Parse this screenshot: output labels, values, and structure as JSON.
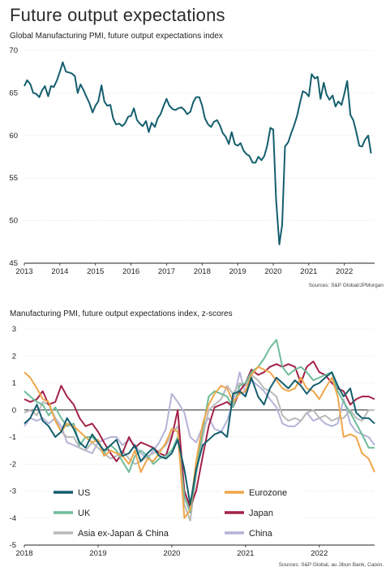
{
  "page_title": "Future output expectations",
  "colors": {
    "teal": "#145e6e",
    "orange": "#f0a64a",
    "green": "#6fbc9a",
    "maroon": "#a32247",
    "grey": "#b9b9b9",
    "lavender": "#b3b4d8",
    "axis": "#222222",
    "grid": "#bbbbbb"
  },
  "chart_data": [
    {
      "type": "line",
      "title": "Global Manufacturing PMI, future output expectations index",
      "source": "Sources: S&P Global/JPMorgan",
      "xlim": [
        2013.0,
        2022.85
      ],
      "ylim": [
        45,
        70
      ],
      "yticks": [
        45,
        50,
        55,
        60,
        65,
        70
      ],
      "xticks": [
        "2013",
        "2014",
        "2015",
        "2016",
        "2017",
        "2018",
        "2019",
        "2020",
        "2021",
        "2022"
      ],
      "series": [
        {
          "color_key": "teal",
          "x": [
            2013.0,
            2013.08,
            2013.17,
            2013.25,
            2013.33,
            2013.42,
            2013.5,
            2013.58,
            2013.67,
            2013.75,
            2013.83,
            2013.92,
            2014.0,
            2014.08,
            2014.17,
            2014.25,
            2014.33,
            2014.42,
            2014.5,
            2014.58,
            2014.67,
            2014.75,
            2014.83,
            2014.92,
            2015.0,
            2015.08,
            2015.17,
            2015.25,
            2015.33,
            2015.42,
            2015.5,
            2015.58,
            2015.67,
            2015.75,
            2015.83,
            2015.92,
            2016.0,
            2016.08,
            2016.17,
            2016.25,
            2016.33,
            2016.42,
            2016.5,
            2016.58,
            2016.67,
            2016.75,
            2016.83,
            2016.92,
            2017.0,
            2017.08,
            2017.17,
            2017.25,
            2017.33,
            2017.42,
            2017.5,
            2017.58,
            2017.67,
            2017.75,
            2017.83,
            2017.92,
            2018.0,
            2018.08,
            2018.17,
            2018.25,
            2018.33,
            2018.42,
            2018.5,
            2018.58,
            2018.67,
            2018.75,
            2018.83,
            2018.92,
            2019.0,
            2019.08,
            2019.17,
            2019.25,
            2019.33,
            2019.42,
            2019.5,
            2019.58,
            2019.67,
            2019.75,
            2019.83,
            2019.92,
            2020.0,
            2020.08,
            2020.17,
            2020.25,
            2020.33,
            2020.42,
            2020.5,
            2020.58,
            2020.67,
            2020.75,
            2020.83,
            2020.92,
            2021.0,
            2021.08,
            2021.17,
            2021.25,
            2021.33,
            2021.42,
            2021.5,
            2021.58,
            2021.67,
            2021.75,
            2021.83,
            2021.92,
            2022.0,
            2022.08,
            2022.17,
            2022.25,
            2022.33,
            2022.42,
            2022.5,
            2022.58,
            2022.67,
            2022.75
          ],
          "y": [
            65.8,
            66.5,
            66.0,
            65.0,
            64.9,
            64.5,
            65.3,
            65.8,
            64.6,
            65.8,
            65.7,
            66.5,
            67.5,
            68.6,
            67.5,
            67.4,
            67.3,
            67.0,
            65.0,
            66.0,
            65.3,
            64.5,
            63.8,
            62.7,
            63.5,
            64.0,
            65.9,
            64.0,
            63.5,
            63.6,
            62.0,
            61.3,
            61.4,
            61.1,
            61.4,
            62.2,
            62.3,
            63.2,
            61.8,
            61.4,
            61.1,
            61.7,
            60.4,
            61.5,
            61.0,
            62.0,
            62.5,
            63.5,
            64.3,
            63.5,
            63.1,
            63.0,
            63.2,
            63.3,
            63.0,
            62.5,
            62.8,
            63.9,
            64.5,
            64.5,
            63.5,
            62.0,
            61.3,
            61.0,
            61.6,
            61.8,
            61.2,
            60.3,
            59.8,
            59.0,
            60.4,
            59.0,
            58.8,
            59.1,
            58.2,
            57.8,
            57.6,
            56.8,
            56.8,
            57.5,
            57.1,
            57.6,
            58.8,
            60.9,
            60.7,
            52.5,
            47.2,
            49.5,
            58.7,
            59.2,
            60.2,
            61.1,
            62.3,
            63.8,
            65.2,
            65.0,
            64.6,
            67.2,
            66.7,
            66.9,
            64.3,
            66.2,
            64.8,
            64.2,
            64.7,
            63.4,
            64.0,
            63.6,
            64.9,
            66.4,
            62.4,
            61.8,
            60.5,
            58.8,
            58.7,
            59.5,
            60.0,
            57.9
          ]
        }
      ]
    },
    {
      "type": "line",
      "title": "Manufacturing PMI, future output expectations index, z-scores",
      "source": "Sources: S&P Global, au Jibun Bank, Caixin.",
      "xlim": [
        2018.0,
        2022.75
      ],
      "ylim": [
        -5,
        3
      ],
      "yticks": [
        3,
        2,
        1,
        0,
        -1,
        -2,
        -3,
        -4,
        -5
      ],
      "xticks": [
        "2018",
        "2019",
        "2020",
        "2021",
        "2022"
      ],
      "legend": [
        {
          "label": "US",
          "color_key": "teal"
        },
        {
          "label": "Eurozone",
          "color_key": "orange"
        },
        {
          "label": "UK",
          "color_key": "green"
        },
        {
          "label": "Japan",
          "color_key": "maroon"
        },
        {
          "label": "Asia ex-Japan & China",
          "color_key": "grey"
        },
        {
          "label": "China",
          "color_key": "lavender"
        }
      ],
      "x": [
        2018.0,
        2018.08,
        2018.17,
        2018.25,
        2018.33,
        2018.42,
        2018.5,
        2018.58,
        2018.67,
        2018.75,
        2018.83,
        2018.92,
        2019.0,
        2019.08,
        2019.17,
        2019.25,
        2019.33,
        2019.42,
        2019.5,
        2019.58,
        2019.67,
        2019.75,
        2019.83,
        2019.92,
        2020.0,
        2020.08,
        2020.17,
        2020.25,
        2020.33,
        2020.42,
        2020.5,
        2020.58,
        2020.67,
        2020.75,
        2020.83,
        2020.92,
        2021.0,
        2021.08,
        2021.17,
        2021.25,
        2021.33,
        2021.42,
        2021.5,
        2021.58,
        2021.67,
        2021.75,
        2021.83,
        2021.92,
        2022.0,
        2022.08,
        2022.17,
        2022.25,
        2022.33,
        2022.42,
        2022.5,
        2022.58,
        2022.67,
        2022.75
      ],
      "series": [
        {
          "name": "US",
          "color_key": "teal",
          "y": [
            -0.5,
            -0.3,
            0.2,
            -0.4,
            -0.6,
            -1.0,
            -0.8,
            -0.3,
            -0.7,
            -1.2,
            -1.4,
            -0.9,
            -1.2,
            -1.5,
            -1.3,
            -1.1,
            -1.7,
            -1.6,
            -1.3,
            -1.9,
            -1.6,
            -1.4,
            -1.7,
            -1.8,
            -1.6,
            -1.1,
            -2.2,
            -3.5,
            -2.2,
            -1.3,
            -1.1,
            -0.9,
            -0.8,
            -1.0,
            0.6,
            0.7,
            0.5,
            1.2,
            0.5,
            0.2,
            0.8,
            1.2,
            1.0,
            0.8,
            1.1,
            0.9,
            0.6,
            0.9,
            1.0,
            1.2,
            1.4,
            0.9,
            0.5,
            0.8,
            -0.1,
            -0.3,
            -0.3,
            -0.5
          ]
        },
        {
          "name": "Eurozone",
          "color_key": "orange",
          "y": [
            1.4,
            1.2,
            0.8,
            0.4,
            0.3,
            -0.4,
            -0.8,
            -0.5,
            -0.6,
            -0.8,
            -1.0,
            -1.2,
            -1.1,
            -1.7,
            -1.5,
            -1.6,
            -1.7,
            -2.0,
            -1.5,
            -2.3,
            -1.8,
            -1.9,
            -1.6,
            -1.2,
            -0.7,
            -0.8,
            -4.0,
            -3.7,
            -1.9,
            -0.5,
            0.2,
            0.6,
            0.9,
            0.8,
            0.3,
            0.6,
            0.7,
            1.3,
            1.6,
            1.5,
            1.4,
            1.1,
            0.8,
            0.7,
            0.8,
            1.2,
            0.8,
            0.7,
            0.4,
            0.8,
            1.2,
            0.5,
            -1.0,
            -0.9,
            -1.0,
            -1.6,
            -1.8,
            -2.3
          ]
        },
        {
          "name": "UK",
          "color_key": "green",
          "y": [
            0.7,
            0.5,
            0.3,
            0.2,
            -0.2,
            0.1,
            -0.3,
            -0.6,
            -0.5,
            -1.3,
            -1.0,
            -1.0,
            -1.2,
            -1.6,
            -1.3,
            -1.5,
            -1.9,
            -2.3,
            -1.7,
            -1.5,
            -1.7,
            -2.0,
            -1.8,
            -1.7,
            -1.5,
            -1.0,
            -3.2,
            -3.8,
            -2.3,
            -0.7,
            0.5,
            0.7,
            0.6,
            0.5,
            0.1,
            0.9,
            1.0,
            1.4,
            1.6,
            1.9,
            2.3,
            2.6,
            1.6,
            1.3,
            1.5,
            1.6,
            1.4,
            1.1,
            1.2,
            1.3,
            1.4,
            0.7,
            0.3,
            -0.1,
            -0.5,
            -0.9,
            -1.4,
            -1.4
          ]
        },
        {
          "name": "Japan",
          "color_key": "maroon",
          "y": [
            0.4,
            0.3,
            0.4,
            0.7,
            0.2,
            0.3,
            0.9,
            0.5,
            0.2,
            -0.3,
            -0.6,
            -0.5,
            -0.8,
            -1.2,
            -1.6,
            -1.9,
            -1.6,
            -1.0,
            -1.4,
            -1.2,
            -1.3,
            -1.4,
            -1.6,
            -1.7,
            -1.0,
            0.0,
            -3.0,
            -3.6,
            -3.0,
            -1.7,
            -0.6,
            0.1,
            0.2,
            0.3,
            0.1,
            0.7,
            1.0,
            1.5,
            1.3,
            1.4,
            1.6,
            1.7,
            1.6,
            1.7,
            1.6,
            1.0,
            1.6,
            1.8,
            1.4,
            1.3,
            1.0,
            0.8,
            0.7,
            0.2,
            0.4,
            0.5,
            0.5,
            0.4
          ]
        },
        {
          "name": "Asia ex-Japan & China",
          "color_key": "grey",
          "y": [
            -0.1,
            0.0,
            -0.2,
            0.3,
            0.2,
            -0.3,
            -0.8,
            -1.0,
            -1.0,
            -1.4,
            -1.5,
            -1.2,
            -1.4,
            -1.6,
            -1.8,
            -1.7,
            -1.5,
            -1.8,
            -2.0,
            -1.9,
            -1.7,
            -1.6,
            -1.5,
            -1.3,
            -0.9,
            -0.6,
            -3.5,
            -4.1,
            -2.4,
            -1.0,
            0.0,
            0.2,
            0.4,
            0.9,
            0.6,
            1.0,
            0.9,
            1.3,
            1.1,
            0.8,
            0.7,
            0.5,
            -0.2,
            -0.4,
            -0.3,
            -0.4,
            -0.1,
            0.0,
            -0.3,
            -0.2,
            -0.4,
            -0.3,
            -0.3,
            0.0,
            -0.3,
            -0.4,
            0.0,
            0.0
          ]
        },
        {
          "name": "China",
          "color_key": "lavender",
          "y": [
            -0.6,
            -0.3,
            -0.4,
            -0.3,
            -0.5,
            -0.3,
            -0.6,
            -1.2,
            -1.3,
            -1.4,
            -1.5,
            -1.6,
            -1.2,
            -1.1,
            -1.0,
            -1.0,
            -1.3,
            -1.1,
            -1.3,
            -1.6,
            -1.8,
            -1.5,
            -1.2,
            -0.7,
            0.6,
            0.3,
            -0.1,
            -1.0,
            -1.2,
            -0.6,
            -0.3,
            -0.7,
            -0.8,
            -0.4,
            0.3,
            1.4,
            0.6,
            1.1,
            0.9,
            0.7,
            0.4,
            0.1,
            -0.5,
            -0.6,
            -0.6,
            -0.4,
            -0.1,
            -0.4,
            -0.3,
            -0.5,
            -0.6,
            -0.5,
            0.4,
            -0.5,
            -0.8,
            -0.9,
            -1.0,
            -1.3
          ]
        }
      ]
    }
  ]
}
